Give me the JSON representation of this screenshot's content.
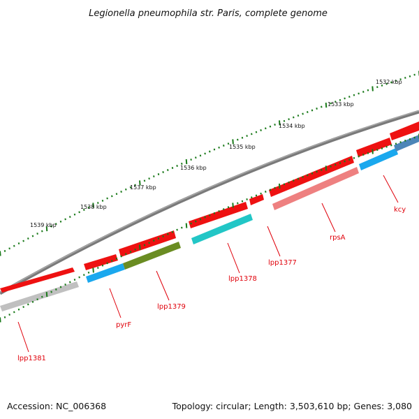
{
  "title": "Legionella pneumophila str. Paris, complete genome",
  "footer": {
    "accession": "Accession: NC_006368",
    "summary": "Topology: circular; Length: 3,503,610 bp; Genes: 3,080"
  },
  "colors": {
    "backbone": "#7a7a7a",
    "tick": "#1a7a1a",
    "label": "#e0000a",
    "red": "#ee1111",
    "pink": "#ee8080",
    "cyan": "#22c6c6",
    "blue": "#1aa8ee",
    "steelblue": "#4d86b8",
    "olive": "#6a8c22",
    "grey": "#c0c0c0"
  },
  "kbp_labels": [
    "1532 kbp",
    "1533 kbp",
    "1534 kbp",
    "1535 kbp",
    "1536 kbp",
    "1537 kbp",
    "1538 kbp",
    "1539 kbp"
  ],
  "gene_labels": [
    "kcy",
    "rpsA",
    "lpp1377",
    "lpp1378",
    "lpp1379",
    "pyrF",
    "lpp1381"
  ]
}
